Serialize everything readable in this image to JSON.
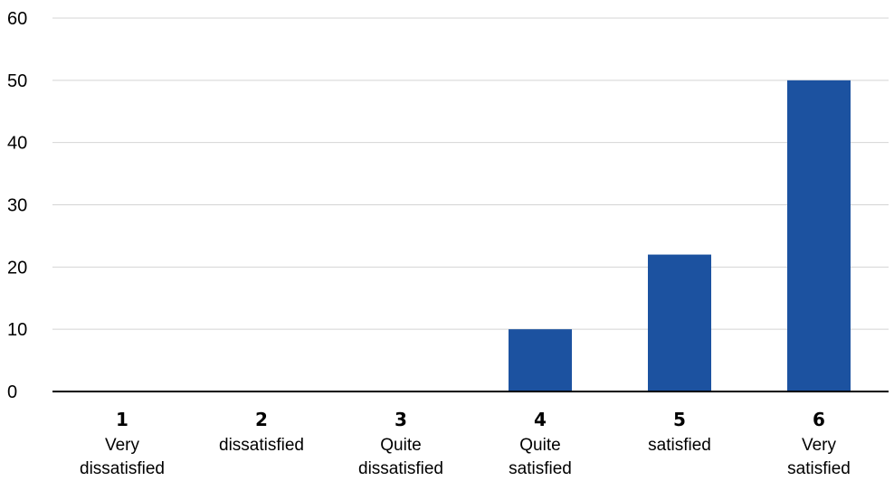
{
  "chart_data": {
    "type": "bar",
    "categories": [
      {
        "number": "1",
        "label_lines": [
          "Very",
          "dissatisfied"
        ]
      },
      {
        "number": "2",
        "label_lines": [
          "dissatisfied"
        ]
      },
      {
        "number": "3",
        "label_lines": [
          "Quite",
          "dissatisfied"
        ]
      },
      {
        "number": "4",
        "label_lines": [
          "Quite",
          "satisfied"
        ]
      },
      {
        "number": "5",
        "label_lines": [
          "satisfied"
        ]
      },
      {
        "number": "6",
        "label_lines": [
          "Very",
          "satisfied"
        ]
      }
    ],
    "values": [
      0,
      0,
      0,
      10,
      22,
      50
    ],
    "ylim": [
      0,
      60
    ],
    "yticks": [
      "0",
      "10",
      "20",
      "30",
      "40",
      "50",
      "60"
    ],
    "grid": true,
    "bar_color": "#1c52a0",
    "grid_color": "#d4d4d4",
    "axis_color": "#000000"
  }
}
